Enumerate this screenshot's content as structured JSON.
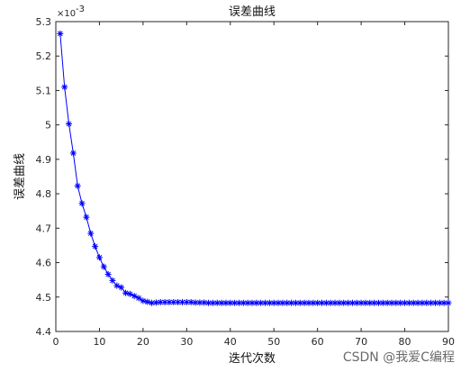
{
  "chart_data": {
    "type": "line",
    "title": "误差曲线",
    "xlabel": "迭代次数",
    "ylabel": "误差曲线",
    "exponent_label": "×10",
    "exponent_power": "-3",
    "xlim": [
      0,
      90
    ],
    "ylim": [
      4.4,
      5.3
    ],
    "xticks": [
      "0",
      "10",
      "20",
      "30",
      "40",
      "50",
      "60",
      "70",
      "80",
      "90"
    ],
    "yticks": [
      "4.4",
      "4.5",
      "4.6",
      "4.7",
      "4.8",
      "4.9",
      "5",
      "5.1",
      "5.2",
      "5.3"
    ],
    "grid": false,
    "marker": "asterisk",
    "line_color": "#0000ff",
    "series": [
      {
        "x": [
          1,
          2,
          3,
          4,
          5,
          6,
          7,
          8,
          9,
          10,
          11,
          12,
          13,
          14,
          15,
          16,
          17,
          18,
          19,
          20,
          21,
          22,
          23,
          24,
          25,
          26,
          27,
          28,
          29,
          30,
          31,
          32,
          33,
          34,
          35,
          36,
          37,
          38,
          39,
          40,
          41,
          42,
          43,
          44,
          45,
          46,
          47,
          48,
          49,
          50,
          51,
          52,
          53,
          54,
          55,
          56,
          57,
          58,
          59,
          60,
          61,
          62,
          63,
          64,
          65,
          66,
          67,
          68,
          69,
          70,
          71,
          72,
          73,
          74,
          75,
          76,
          77,
          78,
          79,
          80,
          81,
          82,
          83,
          84,
          85,
          86,
          87,
          88,
          89,
          90
        ],
        "y": [
          5.265,
          5.11,
          5.003,
          4.918,
          4.823,
          4.772,
          4.732,
          4.685,
          4.647,
          4.615,
          4.588,
          4.566,
          4.548,
          4.533,
          4.528,
          4.512,
          4.509,
          4.503,
          4.497,
          4.489,
          4.486,
          4.483,
          4.484,
          4.485,
          4.485,
          4.485,
          4.485,
          4.485,
          4.485,
          4.485,
          4.485,
          4.484,
          4.484,
          4.484,
          4.483,
          4.483,
          4.483,
          4.483,
          4.483,
          4.483,
          4.483,
          4.483,
          4.483,
          4.483,
          4.483,
          4.483,
          4.483,
          4.483,
          4.483,
          4.483,
          4.483,
          4.483,
          4.483,
          4.483,
          4.483,
          4.483,
          4.483,
          4.483,
          4.483,
          4.483,
          4.483,
          4.483,
          4.483,
          4.483,
          4.483,
          4.483,
          4.483,
          4.483,
          4.483,
          4.483,
          4.483,
          4.483,
          4.483,
          4.483,
          4.483,
          4.483,
          4.483,
          4.483,
          4.483,
          4.483,
          4.483,
          4.483,
          4.483,
          4.483,
          4.483,
          4.483,
          4.483,
          4.483,
          4.483,
          4.483
        ]
      }
    ]
  },
  "watermark": "CSDN @我爱C编程"
}
